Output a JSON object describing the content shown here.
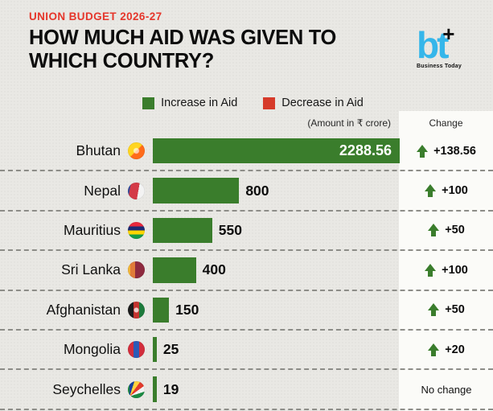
{
  "header": {
    "kicker": "UNION BUDGET 2026-27",
    "title_line1": "HOW MUCH AID WAS GIVEN TO",
    "title_line2": "WHICH COUNTRY?",
    "logo": {
      "text": "bt",
      "plus_glyph": "+",
      "caption": "Business Today"
    }
  },
  "legend": [
    {
      "label": "Increase in Aid",
      "color": "#3a7d2c"
    },
    {
      "label": "Decrease in Aid",
      "color": "#d63a2a"
    }
  ],
  "subheader": {
    "amount_note": "(Amount in ₹ crore)",
    "change_label": "Change"
  },
  "chart_data": {
    "type": "bar",
    "orientation": "horizontal",
    "title": "How much aid was given to which country?",
    "unit": "₹ crore",
    "categories": [
      "Bhutan",
      "Nepal",
      "Mauritius",
      "Sri Lanka",
      "Afghanistan",
      "Mongolia",
      "Seychelles"
    ],
    "values": [
      2288.56,
      800,
      550,
      400,
      150,
      25,
      19
    ],
    "changes": [
      138.56,
      100,
      50,
      100,
      50,
      20,
      0
    ],
    "change_labels": [
      "+138.56",
      "+100",
      "+50",
      "+100",
      "+50",
      "+20",
      "No change"
    ],
    "xlim": [
      0,
      2288.56
    ],
    "bar_color": "#3a7d2c",
    "legend_position": "top",
    "grid": false
  },
  "rows": [
    {
      "country": "Bhutan",
      "flag": "bhutan",
      "value": "2288.56",
      "value_numeric": 2288.56,
      "change": "+138.56",
      "arrow": "up"
    },
    {
      "country": "Nepal",
      "flag": "nepal",
      "value": "800",
      "value_numeric": 800,
      "change": "+100",
      "arrow": "up"
    },
    {
      "country": "Mauritius",
      "flag": "mauritius",
      "value": "550",
      "value_numeric": 550,
      "change": "+50",
      "arrow": "up"
    },
    {
      "country": "Sri Lanka",
      "flag": "srilanka",
      "value": "400",
      "value_numeric": 400,
      "change": "+100",
      "arrow": "up"
    },
    {
      "country": "Afghanistan",
      "flag": "afghanistan",
      "value": "150",
      "value_numeric": 150,
      "change": "+50",
      "arrow": "up"
    },
    {
      "country": "Mongolia",
      "flag": "mongolia",
      "value": "25",
      "value_numeric": 25,
      "change": "+20",
      "arrow": "up"
    },
    {
      "country": "Seychelles",
      "flag": "seychelles",
      "value": "19",
      "value_numeric": 19,
      "change": "No change",
      "arrow": "none"
    }
  ],
  "colors": {
    "bar_green": "#3a7d2c",
    "accent_red": "#e5362b",
    "logo_blue": "#35b6ea"
  }
}
